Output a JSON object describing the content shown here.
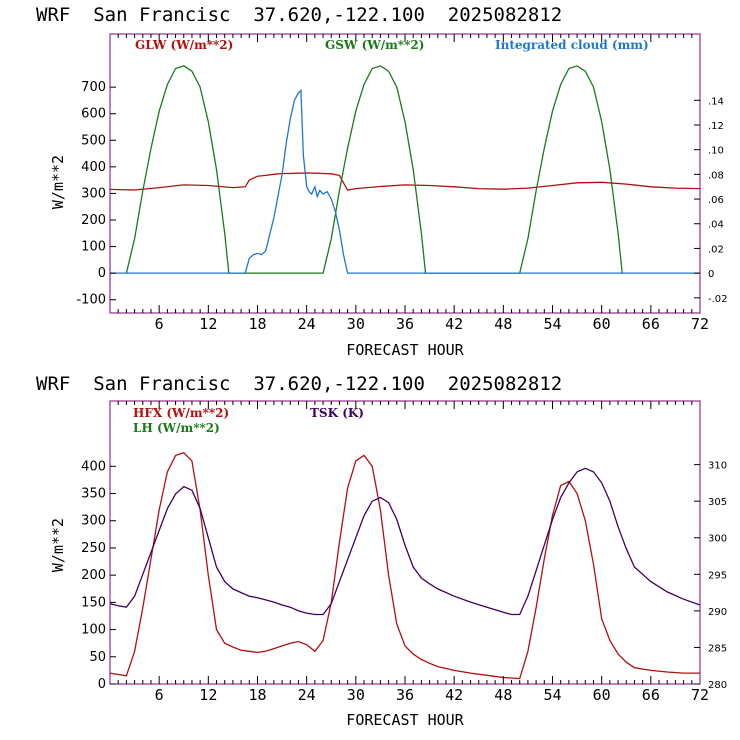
{
  "chart_data": [
    {
      "type": "line",
      "title": "WRF  San Francisc  37.620,-122.100  2025082812",
      "xlabel": "FORECAST HOUR",
      "ylabel": "W/m**2",
      "xlim": [
        0,
        72
      ],
      "xticks": [
        "6",
        "12",
        "18",
        "24",
        "30",
        "36",
        "42",
        "48",
        "54",
        "60",
        "66",
        "72"
      ],
      "ylim": [
        -150,
        900
      ],
      "yticks": [
        "-100",
        "0",
        "100",
        "200",
        "300",
        "400",
        "500",
        "600",
        "700"
      ],
      "y2lim": [
        -0.0323,
        0.1937
      ],
      "y2ticks": [
        "-.02",
        "0",
        ".02",
        ".04",
        ".06",
        ".08",
        ".10",
        ".12",
        ".14"
      ],
      "colors": {
        "glw": "#b01010",
        "gsw": "#1a7a1a",
        "cloud": "#1f77d0",
        "frame": "#800080"
      },
      "series": [
        {
          "name": "GLW (W/m**2)",
          "axis": "left",
          "x": [
            0,
            3,
            6,
            9,
            12,
            15,
            16.5,
            17,
            18,
            19,
            20,
            21,
            22,
            23,
            24,
            25,
            26,
            27,
            28,
            28.5,
            29,
            30,
            33,
            36,
            39,
            42,
            45,
            48,
            51,
            54,
            57,
            60,
            63,
            66,
            69,
            72
          ],
          "y": [
            315,
            313,
            322,
            332,
            330,
            322,
            325,
            350,
            365,
            368,
            372,
            375,
            375,
            376,
            377,
            376,
            375,
            374,
            368,
            340,
            312,
            318,
            326,
            332,
            330,
            325,
            318,
            316,
            320,
            330,
            340,
            342,
            335,
            325,
            320,
            318
          ]
        },
        {
          "name": "GSW (W/m**2)",
          "axis": "left",
          "x": [
            2,
            3,
            4,
            5,
            6,
            7,
            8,
            9,
            10,
            11,
            12,
            13,
            14,
            14.5,
            26,
            27,
            28,
            29,
            30,
            31,
            32,
            33,
            34,
            35,
            36,
            37,
            38,
            38.5,
            50,
            51,
            52,
            53,
            54,
            55,
            56,
            57,
            58,
            59,
            60,
            61,
            62,
            62.5
          ],
          "y": [
            0,
            130,
            310,
            470,
            610,
            710,
            770,
            780,
            760,
            700,
            570,
            390,
            150,
            0,
            0,
            130,
            310,
            470,
            610,
            710,
            770,
            780,
            760,
            700,
            570,
            390,
            150,
            0,
            0,
            130,
            310,
            470,
            610,
            710,
            770,
            780,
            760,
            700,
            570,
            390,
            150,
            0
          ]
        },
        {
          "name": "Integrated cloud (mm)",
          "axis": "right",
          "x": [
            0,
            16.5,
            17,
            17.5,
            18,
            18.5,
            19,
            20,
            21,
            21.5,
            22,
            22.5,
            23,
            23.3,
            23.6,
            24,
            24.3,
            24.6,
            25,
            25.3,
            25.6,
            26,
            26.5,
            27,
            27.5,
            28,
            28.5,
            29,
            72
          ],
          "y": [
            0,
            0,
            0.012,
            0.015,
            0.016,
            0.015,
            0.018,
            0.045,
            0.08,
            0.105,
            0.125,
            0.14,
            0.146,
            0.148,
            0.095,
            0.07,
            0.066,
            0.064,
            0.07,
            0.062,
            0.067,
            0.064,
            0.066,
            0.06,
            0.05,
            0.035,
            0.015,
            0,
            0
          ]
        }
      ]
    },
    {
      "type": "line",
      "title": "WRF  San Francisc  37.620,-122.100  2025082812",
      "xlabel": "FORECAST HOUR",
      "ylabel": "W/m**2",
      "xlim": [
        0,
        72
      ],
      "xticks": [
        "6",
        "12",
        "18",
        "24",
        "30",
        "36",
        "42",
        "48",
        "54",
        "60",
        "66",
        "72"
      ],
      "ylim": [
        0,
        520
      ],
      "yticks": [
        "0",
        "50",
        "100",
        "150",
        "200",
        "250",
        "300",
        "350",
        "400"
      ],
      "y2lim": [
        280,
        318.7
      ],
      "y2ticks": [
        "280",
        "285",
        "290",
        "295",
        "300",
        "305",
        "310"
      ],
      "colors": {
        "hfx": "#b01010",
        "lh": "#1a7a1a",
        "tsk": "#400060",
        "frame": "#800080"
      },
      "series": [
        {
          "name": "HFX (W/m**2)",
          "axis": "left",
          "x": [
            0,
            2,
            3,
            4,
            5,
            6,
            7,
            8,
            9,
            10,
            11,
            12,
            13,
            14,
            15,
            16,
            17,
            18,
            19,
            20,
            21,
            22,
            23,
            24,
            25,
            26,
            27,
            28,
            29,
            30,
            31,
            32,
            33,
            34,
            35,
            36,
            37,
            38,
            39,
            40,
            42,
            44,
            46,
            48,
            49,
            50,
            51,
            52,
            53,
            54,
            55,
            56,
            57,
            58,
            59,
            60,
            61,
            62,
            63,
            64,
            66,
            68,
            70,
            72
          ],
          "y": [
            20,
            15,
            60,
            140,
            230,
            320,
            390,
            420,
            425,
            410,
            320,
            200,
            100,
            75,
            68,
            62,
            60,
            58,
            60,
            65,
            70,
            75,
            78,
            72,
            60,
            80,
            150,
            260,
            360,
            410,
            420,
            400,
            320,
            200,
            110,
            70,
            55,
            45,
            38,
            32,
            25,
            20,
            16,
            12,
            11,
            10,
            60,
            140,
            230,
            310,
            365,
            372,
            350,
            300,
            220,
            120,
            80,
            55,
            40,
            30,
            25,
            22,
            20,
            20
          ]
        },
        {
          "name": "LH (W/m**2)",
          "axis": "left",
          "x": [],
          "y": []
        },
        {
          "name": "TSK (K)",
          "axis": "right",
          "x": [
            0,
            1,
            2,
            3,
            4,
            5,
            6,
            7,
            8,
            9,
            10,
            11,
            12,
            13,
            14,
            15,
            16,
            17,
            18,
            19,
            20,
            21,
            22,
            23,
            24,
            25,
            26,
            27,
            28,
            29,
            30,
            31,
            32,
            33,
            34,
            35,
            36,
            37,
            38,
            39,
            40,
            42,
            44,
            46,
            48,
            49,
            50,
            51,
            52,
            53,
            54,
            55,
            56,
            57,
            58,
            59,
            60,
            61,
            62,
            63,
            64,
            66,
            68,
            70,
            72
          ],
          "y": [
            291,
            290.7,
            290.5,
            292,
            295,
            298,
            301,
            304,
            306,
            307,
            306.5,
            304,
            300,
            296,
            294,
            293,
            292.5,
            292,
            291.8,
            291.5,
            291.2,
            290.8,
            290.5,
            290,
            289.7,
            289.5,
            289.5,
            291,
            294,
            297,
            300,
            303,
            305,
            305.5,
            304.8,
            302.5,
            299,
            296,
            294.5,
            293.7,
            293,
            292,
            291.2,
            290.5,
            289.8,
            289.5,
            289.5,
            292,
            295.5,
            299,
            302.5,
            305.5,
            307.5,
            309,
            309.5,
            309,
            307.5,
            305,
            301.5,
            298.5,
            296,
            294,
            292.6,
            291.6,
            290.8
          ]
        }
      ]
    }
  ]
}
